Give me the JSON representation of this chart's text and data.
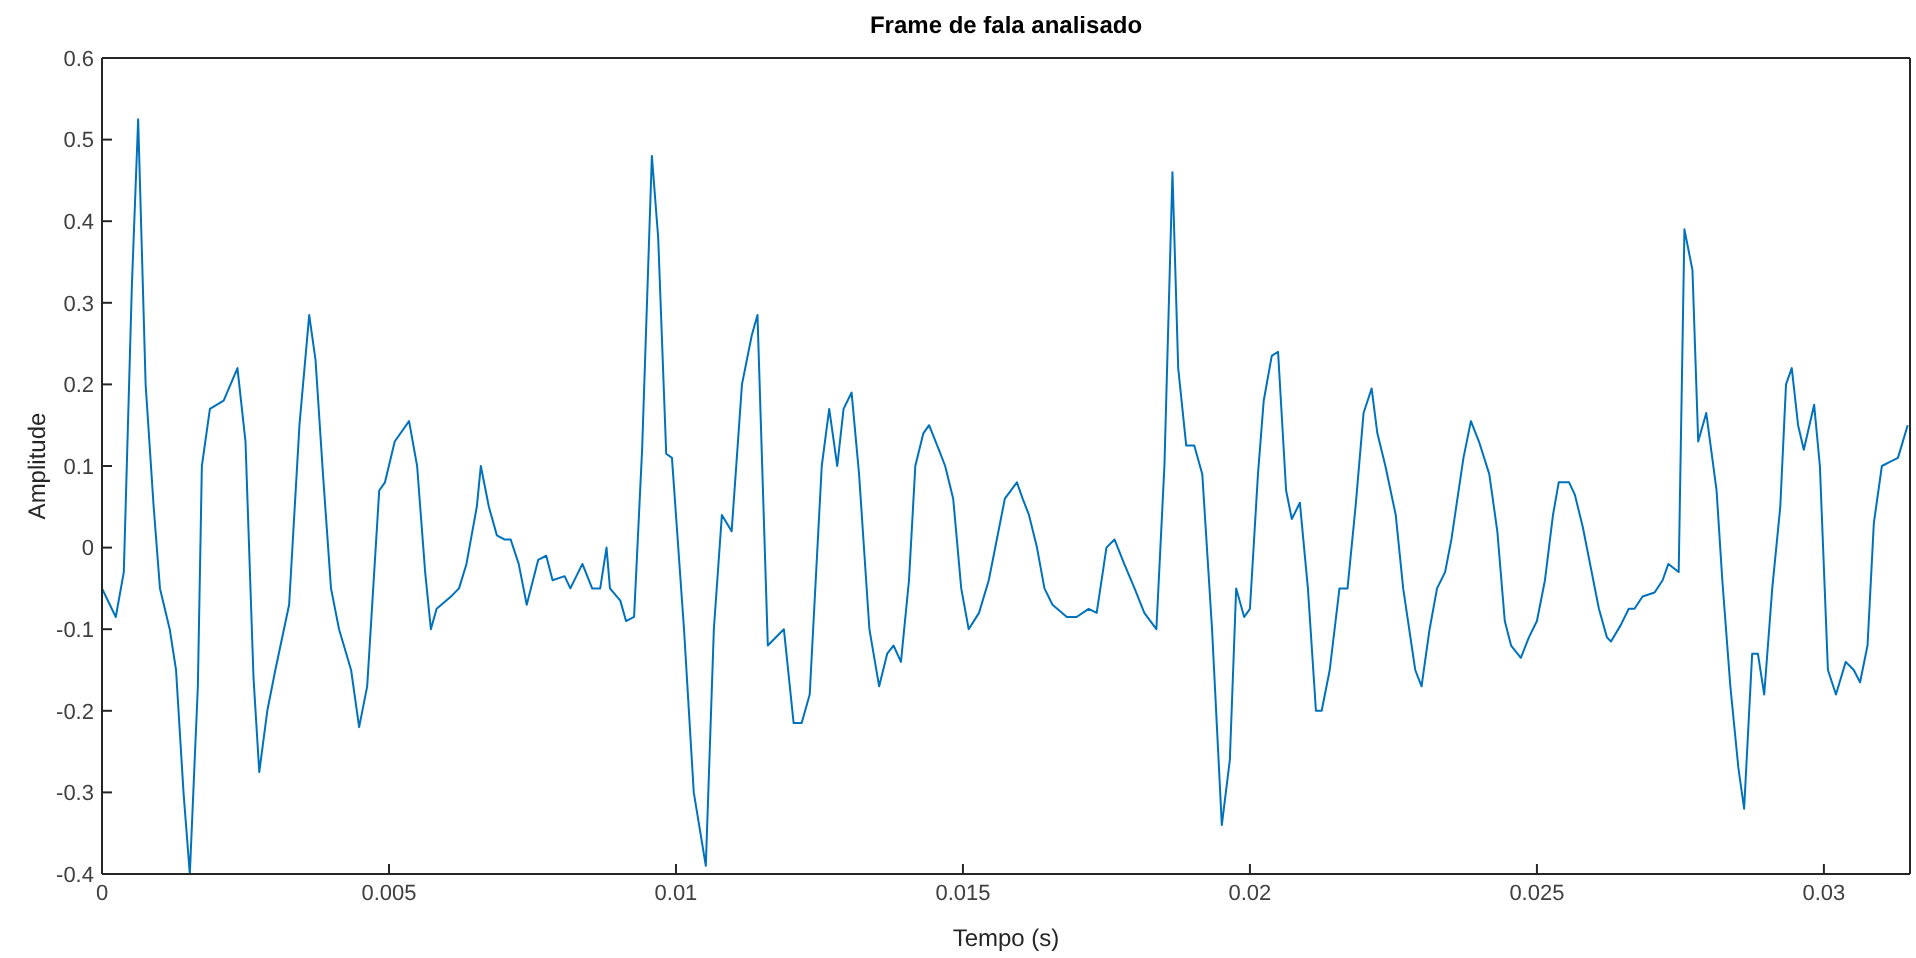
{
  "chart_data": {
    "type": "line",
    "title": "Frame de fala analisado",
    "xlabel": "Tempo (s)",
    "ylabel": "Amplitude",
    "xlim": [
      0,
      0.0315
    ],
    "xticks": [
      0,
      0.005,
      0.01,
      0.015,
      0.02,
      0.025,
      0.03
    ],
    "ylim": [
      -0.4,
      0.6
    ],
    "yticks": [
      -0.4,
      -0.3,
      -0.2,
      -0.1,
      0,
      0.1,
      0.2,
      0.3,
      0.4,
      0.5,
      0.6
    ],
    "grid": false,
    "legend": false,
    "marker": "none",
    "line_style": "solid",
    "series": [
      {
        "color": "#0072bd",
        "x": [
          0,
          0.00024,
          0.00038,
          0.00052,
          0.00063,
          0.00076,
          0.0009,
          0.00101,
          0.00118,
          0.00129,
          0.00142,
          0.00153,
          0.00167,
          0.00174,
          0.00188,
          0.00212,
          0.00236,
          0.0025,
          0.00264,
          0.00274,
          0.00288,
          0.00302,
          0.00326,
          0.00344,
          0.00361,
          0.00372,
          0.00385,
          0.00399,
          0.00413,
          0.00434,
          0.00448,
          0.00462,
          0.00483,
          0.00493,
          0.0051,
          0.00535,
          0.00549,
          0.00563,
          0.00573,
          0.00583,
          0.00608,
          0.00622,
          0.00635,
          0.00653,
          0.0066,
          0.00674,
          0.00688,
          0.00701,
          0.00712,
          0.00726,
          0.0074,
          0.0076,
          0.00774,
          0.00785,
          0.00806,
          0.00816,
          0.00837,
          0.00854,
          0.00868,
          0.00879,
          0.00885,
          0.00903,
          0.00913,
          0.00927,
          0.00941,
          0.00958,
          0.00969,
          0.00983,
          0.00993,
          0.01014,
          0.01031,
          0.01052,
          0.01066,
          0.0108,
          0.01097,
          0.01115,
          0.01132,
          0.01142,
          0.0116,
          0.01188,
          0.01205,
          0.01219,
          0.01233,
          0.01254,
          0.01267,
          0.01281,
          0.01292,
          0.01306,
          0.01319,
          0.01337,
          0.01354,
          0.01368,
          0.01379,
          0.01392,
          0.01406,
          0.01417,
          0.01431,
          0.01441,
          0.01458,
          0.01469,
          0.01483,
          0.01497,
          0.0151,
          0.01528,
          0.01545,
          0.01559,
          0.01573,
          0.01594,
          0.01604,
          0.01615,
          0.01629,
          0.01642,
          0.01656,
          0.01681,
          0.01698,
          0.01719,
          0.01733,
          0.0175,
          0.01764,
          0.01781,
          0.01799,
          0.01816,
          0.01837,
          0.01851,
          0.01865,
          0.01875,
          0.01889,
          0.01903,
          0.01917,
          0.01934,
          0.01951,
          0.01965,
          0.01976,
          0.0199,
          0.02,
          0.02014,
          0.02024,
          0.02038,
          0.02049,
          0.02063,
          0.02073,
          0.02087,
          0.02101,
          0.02115,
          0.02125,
          0.02139,
          0.02156,
          0.0217,
          0.02184,
          0.02198,
          0.02212,
          0.02222,
          0.02236,
          0.02254,
          0.02267,
          0.02288,
          0.02299,
          0.02313,
          0.02326,
          0.0234,
          0.02351,
          0.02372,
          0.02385,
          0.02399,
          0.02417,
          0.02431,
          0.02444,
          0.02455,
          0.02472,
          0.02486,
          0.025,
          0.02514,
          0.02528,
          0.02538,
          0.02556,
          0.02566,
          0.0258,
          0.02594,
          0.02608,
          0.02622,
          0.02629,
          0.02646,
          0.0266,
          0.0267,
          0.02684,
          0.02705,
          0.02719,
          0.02729,
          0.02747,
          0.02757,
          0.02771,
          0.02781,
          0.02795,
          0.02813,
          0.02823,
          0.02837,
          0.02851,
          0.02861,
          0.02875,
          0.02885,
          0.02896,
          0.0291,
          0.02924,
          0.02934,
          0.02944,
          0.02955,
          0.02965,
          0.02983,
          0.02993,
          0.03007,
          0.03021,
          0.03038,
          0.03052,
          0.03063,
          0.03076,
          0.03087,
          0.03101,
          0.03115,
          0.03129,
          0.03146
        ],
        "values": [
          -0.05,
          -0.085,
          -0.03,
          0.32,
          0.525,
          0.2,
          0.05,
          -0.05,
          -0.1,
          -0.15,
          -0.3,
          -0.4,
          -0.17,
          0.1,
          0.17,
          0.18,
          0.22,
          0.13,
          -0.16,
          -0.275,
          -0.2,
          -0.15,
          -0.07,
          0.15,
          0.285,
          0.23,
          0.09,
          -0.05,
          -0.1,
          -0.15,
          -0.22,
          -0.17,
          0.07,
          0.08,
          0.13,
          0.155,
          0.1,
          -0.03,
          -0.1,
          -0.075,
          -0.06,
          -0.05,
          -0.02,
          0.05,
          0.1,
          0.05,
          0.015,
          0.01,
          0.01,
          -0.02,
          -0.07,
          -0.015,
          -0.01,
          -0.04,
          -0.035,
          -0.05,
          -0.02,
          -0.05,
          -0.05,
          0,
          -0.05,
          -0.065,
          -0.09,
          -0.085,
          0.12,
          0.48,
          0.38,
          0.115,
          0.11,
          -0.1,
          -0.3,
          -0.39,
          -0.1,
          0.04,
          0.02,
          0.2,
          0.26,
          0.285,
          -0.12,
          -0.1,
          -0.215,
          -0.215,
          -0.18,
          0.1,
          0.17,
          0.1,
          0.17,
          0.19,
          0.09,
          -0.1,
          -0.17,
          -0.13,
          -0.12,
          -0.14,
          -0.04,
          0.1,
          0.14,
          0.15,
          0.12,
          0.1,
          0.06,
          -0.05,
          -0.1,
          -0.08,
          -0.04,
          0.01,
          0.06,
          0.08,
          0.06,
          0.04,
          0,
          -0.05,
          -0.07,
          -0.085,
          -0.085,
          -0.075,
          -0.08,
          0,
          0.01,
          -0.02,
          -0.05,
          -0.08,
          -0.1,
          0.1,
          0.46,
          0.22,
          0.125,
          0.125,
          0.09,
          -0.1,
          -0.34,
          -0.26,
          -0.05,
          -0.085,
          -0.075,
          0.09,
          0.18,
          0.235,
          0.24,
          0.07,
          0.035,
          0.055,
          -0.05,
          -0.2,
          -0.2,
          -0.15,
          -0.05,
          -0.05,
          0.05,
          0.165,
          0.195,
          0.14,
          0.1,
          0.04,
          -0.05,
          -0.15,
          -0.17,
          -0.1,
          -0.05,
          -0.03,
          0.01,
          0.11,
          0.155,
          0.13,
          0.09,
          0.02,
          -0.09,
          -0.12,
          -0.135,
          -0.11,
          -0.09,
          -0.04,
          0.04,
          0.08,
          0.08,
          0.065,
          0.025,
          -0.025,
          -0.075,
          -0.11,
          -0.115,
          -0.095,
          -0.075,
          -0.075,
          -0.06,
          -0.055,
          -0.04,
          -0.02,
          -0.03,
          0.39,
          0.34,
          0.13,
          0.165,
          0.07,
          -0.04,
          -0.17,
          -0.27,
          -0.32,
          -0.13,
          -0.13,
          -0.18,
          -0.05,
          0.05,
          0.2,
          0.22,
          0.15,
          0.12,
          0.175,
          0.1,
          -0.15,
          -0.18,
          -0.14,
          -0.15,
          -0.165,
          -0.12,
          0.03,
          0.1,
          0.105,
          0.11,
          0.15
        ]
      }
    ]
  }
}
